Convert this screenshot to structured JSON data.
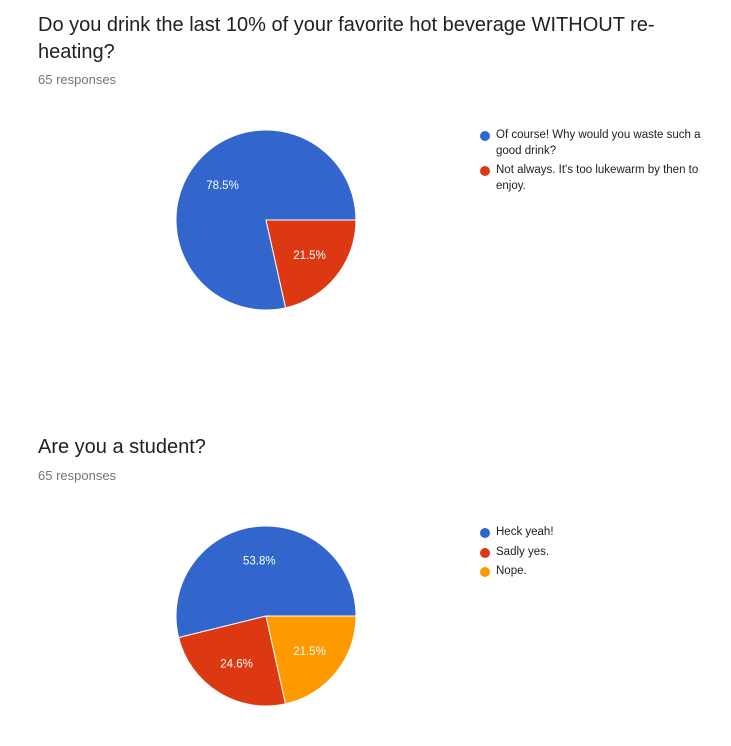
{
  "chart_data": [
    {
      "type": "pie",
      "title": "Do you drink the last 10% of your favorite hot beverage WITHOUT re-heating?",
      "responses_label": "65 responses",
      "slices": [
        {
          "label": "Of course! Why would you waste such a good drink?",
          "value": 78.5,
          "value_label": "78.5%",
          "color": "#3366cc"
        },
        {
          "label": "Not always. It's too lukewarm by then to enjoy.",
          "value": 21.5,
          "value_label": "21.5%",
          "color": "#dc3912"
        }
      ],
      "legend_position": "right"
    },
    {
      "type": "pie",
      "title": "Are you a student?",
      "responses_label": "65 responses",
      "slices": [
        {
          "label": "Heck yeah!",
          "value": 53.8,
          "value_label": "53.8%",
          "color": "#3366cc"
        },
        {
          "label": "Sadly yes.",
          "value": 24.6,
          "value_label": "24.6%",
          "color": "#dc3912"
        },
        {
          "label": "Nope.",
          "value": 21.5,
          "value_label": "21.5%",
          "color": "#ff9900"
        }
      ],
      "legend_position": "right"
    }
  ]
}
